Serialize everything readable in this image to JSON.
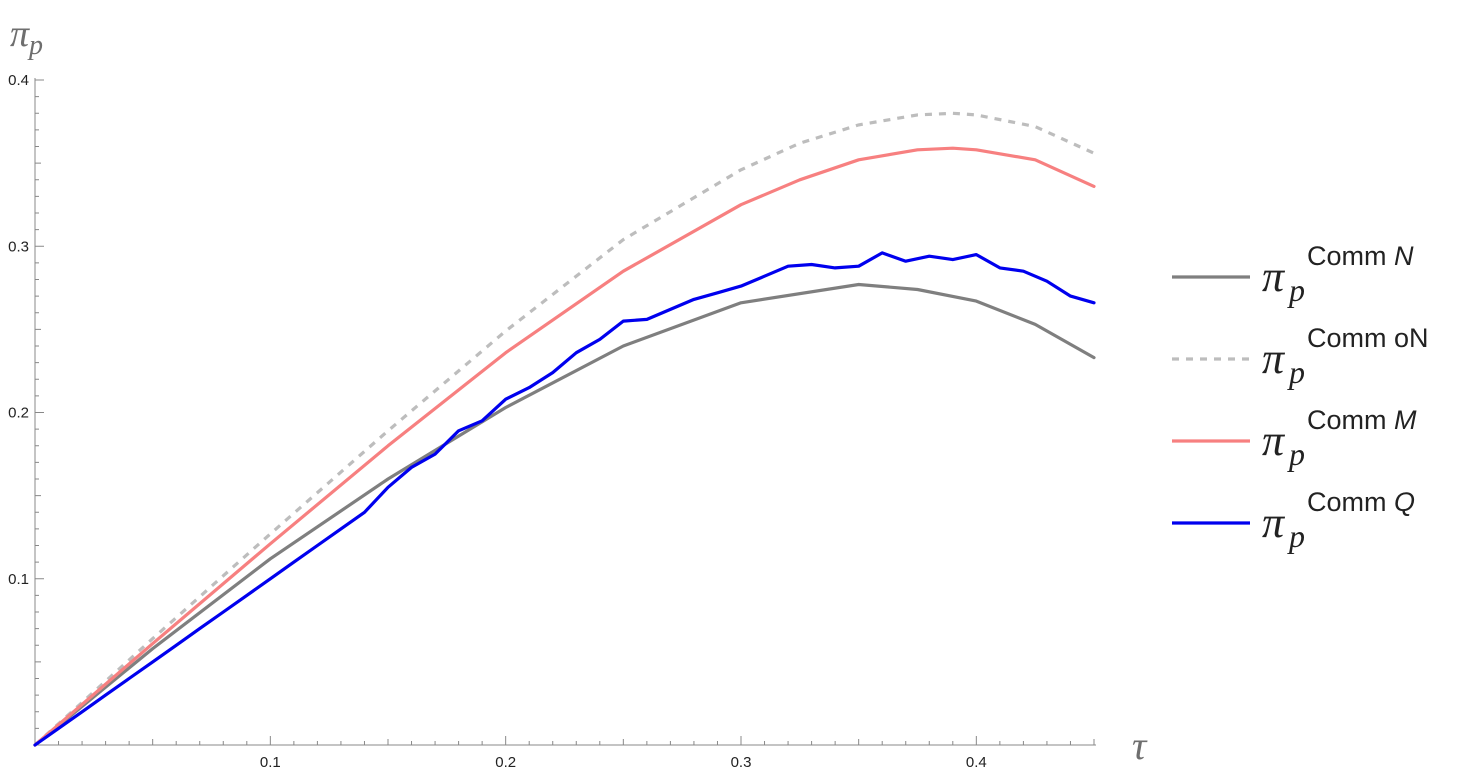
{
  "chart_data": {
    "type": "line",
    "xlabel": "τ",
    "ylabel": "π",
    "ylabel_sub": "p",
    "xlim": [
      0,
      0.45
    ],
    "ylim": [
      0,
      0.4
    ],
    "x_ticks": [
      0.1,
      0.2,
      0.3,
      0.4
    ],
    "x_tick_labels": [
      "0.1",
      "0.2",
      "0.3",
      "0.4"
    ],
    "y_ticks": [
      0.1,
      0.2,
      0.3,
      0.4
    ],
    "y_tick_labels": [
      "0.1",
      "0.2",
      "0.3",
      "0.4"
    ],
    "legend_placement": "right",
    "series": [
      {
        "name": "Comm N",
        "legend_main": "π",
        "legend_sub": "p",
        "legend_sup_plain": "Comm ",
        "legend_sup_italic": "N",
        "color": "#7f7f7f",
        "dashed": false,
        "x": [
          0,
          0.05,
          0.1,
          0.15,
          0.2,
          0.25,
          0.3,
          0.35,
          0.375,
          0.4,
          0.425,
          0.45
        ],
        "y": [
          0,
          0.058,
          0.112,
          0.16,
          0.203,
          0.24,
          0.266,
          0.277,
          0.274,
          0.267,
          0.253,
          0.233
        ]
      },
      {
        "name": "Comm oN",
        "legend_main": "π",
        "legend_sub": "p",
        "legend_sup_plain": "Comm oN",
        "legend_sup_italic": "",
        "color": "#bdbdbd",
        "dashed": true,
        "x": [
          0,
          0.05,
          0.1,
          0.15,
          0.2,
          0.25,
          0.3,
          0.325,
          0.35,
          0.375,
          0.39,
          0.4,
          0.425,
          0.45
        ],
        "y": [
          0,
          0.064,
          0.127,
          0.189,
          0.249,
          0.304,
          0.346,
          0.362,
          0.373,
          0.379,
          0.38,
          0.379,
          0.372,
          0.356
        ]
      },
      {
        "name": "Comm M",
        "legend_main": "π",
        "legend_sub": "p",
        "legend_sup_plain": "Comm ",
        "legend_sup_italic": "M",
        "color": "#f78080",
        "dashed": false,
        "x": [
          0,
          0.05,
          0.1,
          0.15,
          0.2,
          0.25,
          0.3,
          0.325,
          0.35,
          0.375,
          0.39,
          0.4,
          0.425,
          0.45
        ],
        "y": [
          0,
          0.061,
          0.121,
          0.18,
          0.236,
          0.285,
          0.325,
          0.34,
          0.352,
          0.358,
          0.359,
          0.358,
          0.352,
          0.336
        ]
      },
      {
        "name": "Comm Q",
        "legend_main": "π",
        "legend_sub": "p",
        "legend_sup_plain": "Comm ",
        "legend_sup_italic": "Q",
        "color": "#0000ee",
        "dashed": false,
        "x": [
          0,
          0.01,
          0.02,
          0.03,
          0.04,
          0.05,
          0.06,
          0.07,
          0.08,
          0.09,
          0.1,
          0.11,
          0.12,
          0.13,
          0.14,
          0.15,
          0.16,
          0.17,
          0.18,
          0.19,
          0.2,
          0.21,
          0.22,
          0.23,
          0.24,
          0.25,
          0.26,
          0.27,
          0.28,
          0.29,
          0.3,
          0.31,
          0.32,
          0.33,
          0.34,
          0.35,
          0.36,
          0.37,
          0.38,
          0.39,
          0.4,
          0.41,
          0.42,
          0.43,
          0.44,
          0.45
        ],
        "y": [
          0,
          0.01,
          0.02,
          0.03,
          0.04,
          0.05,
          0.06,
          0.07,
          0.08,
          0.09,
          0.1,
          0.11,
          0.12,
          0.13,
          0.14,
          0.155,
          0.167,
          0.175,
          0.189,
          0.195,
          0.208,
          0.215,
          0.224,
          0.236,
          0.244,
          0.255,
          0.256,
          0.262,
          0.268,
          0.272,
          0.276,
          0.282,
          0.288,
          0.289,
          0.287,
          0.288,
          0.296,
          0.291,
          0.294,
          0.292,
          0.295,
          0.287,
          0.285,
          0.279,
          0.27,
          0.266
        ]
      }
    ]
  }
}
